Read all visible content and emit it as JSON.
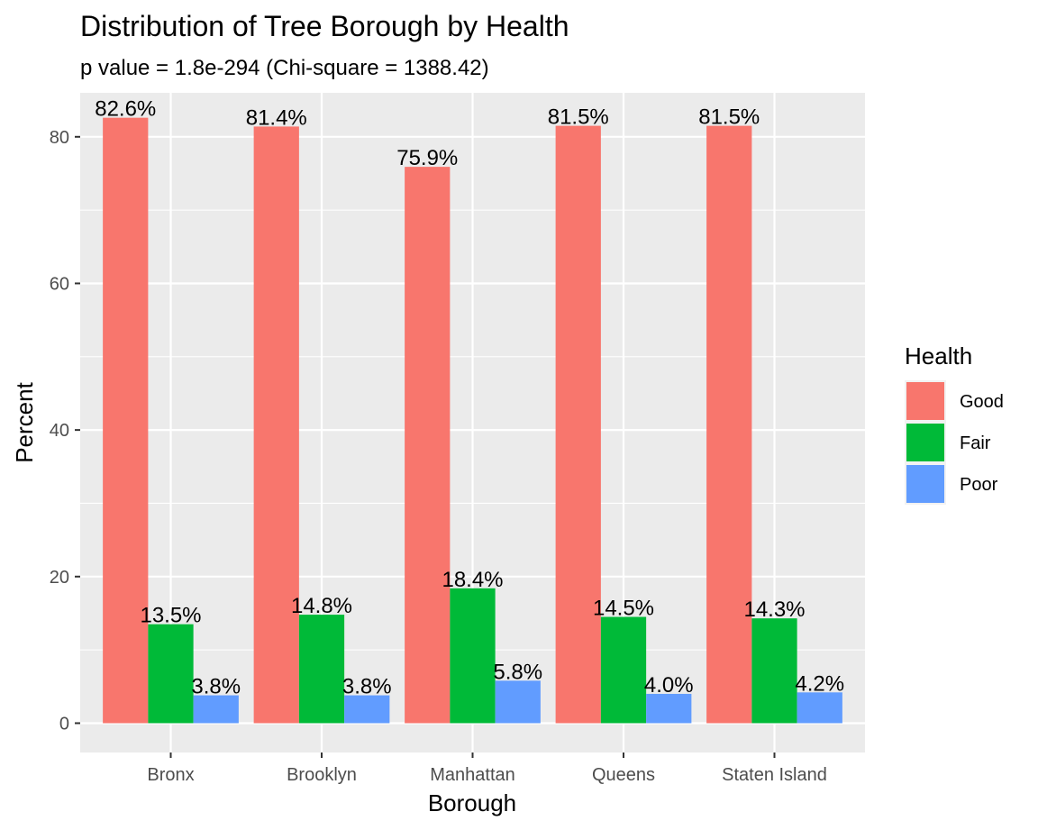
{
  "chart_data": {
    "type": "bar",
    "title": "Distribution of Tree Borough by Health",
    "subtitle": "p value = 1.8e-294 (Chi-square = 1388.42)",
    "xlabel": "Borough",
    "ylabel": "Percent",
    "ylim": [
      -4,
      86
    ],
    "yticks": [
      0,
      20,
      40,
      60,
      80
    ],
    "yticks_labels": [
      "0",
      "20",
      "40",
      "60",
      "80"
    ],
    "categories": [
      "Bronx",
      "Brooklyn",
      "Manhattan",
      "Queens",
      "Staten Island"
    ],
    "series": [
      {
        "name": "Good",
        "color": "#F8766D",
        "values": [
          82.6,
          81.4,
          75.9,
          81.5,
          81.5
        ],
        "labels": [
          "82.6%",
          "81.4%",
          "75.9%",
          "81.5%",
          "81.5%"
        ]
      },
      {
        "name": "Fair",
        "color": "#00BA38",
        "values": [
          13.5,
          14.8,
          18.4,
          14.5,
          14.3
        ],
        "labels": [
          "13.5%",
          "14.8%",
          "18.4%",
          "14.5%",
          "14.3%"
        ]
      },
      {
        "name": "Poor",
        "color": "#619CFF",
        "values": [
          3.8,
          3.8,
          5.8,
          4.0,
          4.2
        ],
        "labels": [
          "3.8%",
          "3.8%",
          "5.8%",
          "4.0%",
          "4.2%"
        ]
      }
    ],
    "legend": {
      "title": "Health",
      "position": "right"
    },
    "grid": true
  }
}
